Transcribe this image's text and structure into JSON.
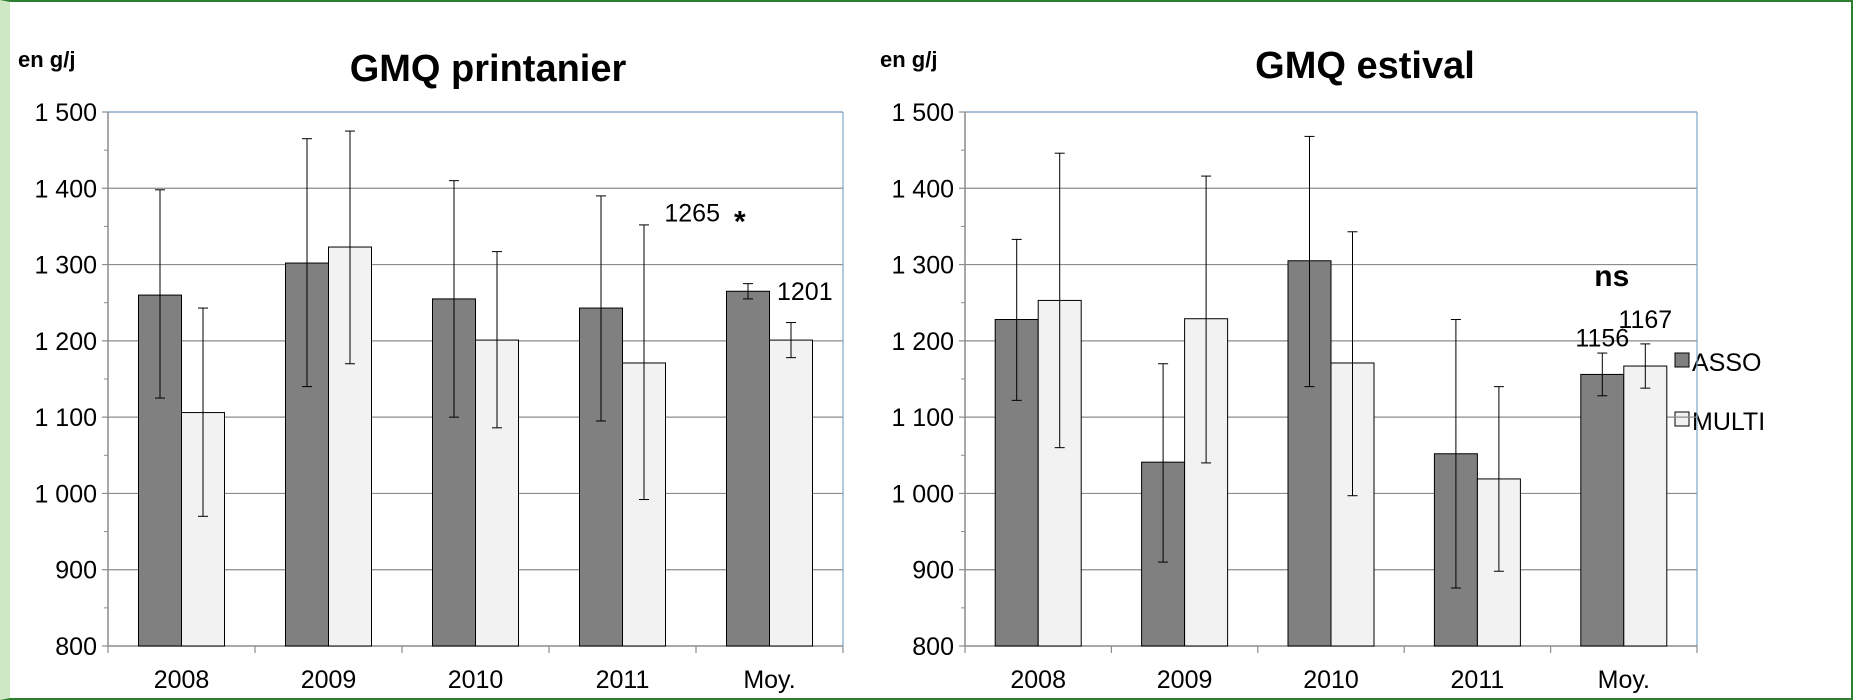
{
  "chart_data": [
    {
      "type": "bar",
      "title": "GMQ printanier",
      "ylabel": "en g/j",
      "ylim": [
        800,
        1500
      ],
      "yticks": [
        "800",
        "900",
        "1 000",
        "1 100",
        "1 200",
        "1 300",
        "1 400",
        "1 500"
      ],
      "grid": true,
      "categories": [
        "2008",
        "2009",
        "2010",
        "2011",
        "Moy."
      ],
      "series": [
        {
          "name": "ASSO",
          "color": "#808080",
          "values": [
            1260,
            1302,
            1255,
            1243,
            1265
          ],
          "err_low": [
            1125,
            1140,
            1100,
            1095,
            1255
          ],
          "err_high": [
            1398,
            1465,
            1410,
            1390,
            1275
          ]
        },
        {
          "name": "MULTI",
          "color": "#f2f2f2",
          "values": [
            1106,
            1323,
            1201,
            1171,
            1201
          ],
          "err_low": [
            970,
            1170,
            1086,
            992,
            1178
          ],
          "err_high": [
            1243,
            1475,
            1317,
            1352,
            1224
          ]
        }
      ],
      "annotations": [
        {
          "text": "1265",
          "x": "Moy.",
          "series": "ASSO",
          "y": 1265
        },
        {
          "text": "*",
          "x": "Moy.",
          "series": "ASSO",
          "y": 1265
        },
        {
          "text": "1201",
          "x": "Moy.",
          "series": "MULTI",
          "y": 1201
        }
      ]
    },
    {
      "type": "bar",
      "title": "GMQ estival",
      "ylabel": "en g/j",
      "ylim": [
        800,
        1500
      ],
      "yticks": [
        "800",
        "900",
        "1 000",
        "1 100",
        "1 200",
        "1 300",
        "1 400",
        "1 500"
      ],
      "grid": true,
      "categories": [
        "2008",
        "2009",
        "2010",
        "2011",
        "Moy."
      ],
      "legend_position": "right",
      "series": [
        {
          "name": "ASSO",
          "color": "#808080",
          "values": [
            1228,
            1041,
            1305,
            1052,
            1156
          ],
          "err_low": [
            1122,
            910,
            1140,
            876,
            1128
          ],
          "err_high": [
            1333,
            1170,
            1468,
            1228,
            1184
          ]
        },
        {
          "name": "MULTI",
          "color": "#f2f2f2",
          "values": [
            1253,
            1229,
            1171,
            1019,
            1167
          ],
          "err_low": [
            1060,
            1040,
            997,
            898,
            1138
          ],
          "err_high": [
            1446,
            1416,
            1343,
            1140,
            1196
          ]
        }
      ],
      "annotations": [
        {
          "text": "1156",
          "x": "Moy.",
          "series": "ASSO",
          "y": 1156
        },
        {
          "text": "1167",
          "x": "Moy.",
          "series": "MULTI",
          "y": 1167
        },
        {
          "text": "ns",
          "x": "Moy.",
          "series": "both",
          "y": 1167
        }
      ]
    }
  ]
}
